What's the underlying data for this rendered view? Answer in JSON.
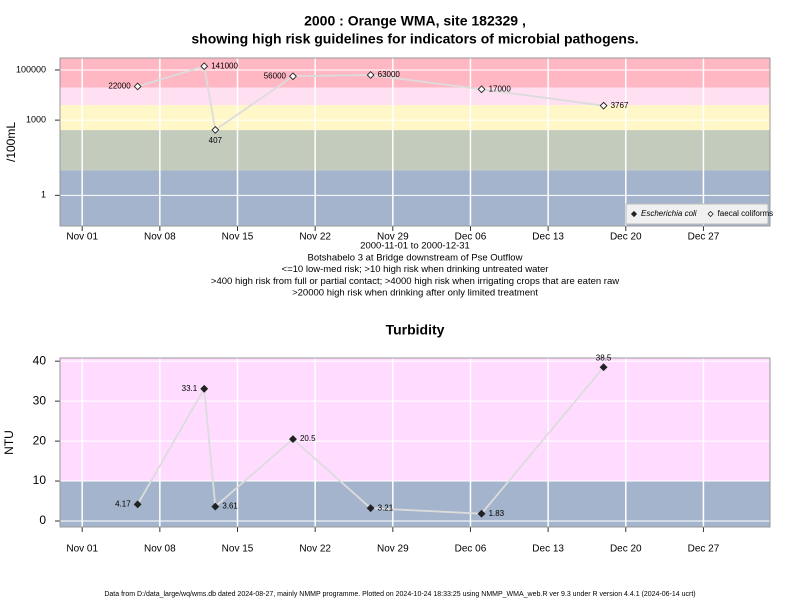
{
  "chart_data": [
    {
      "type": "line",
      "title": "2000 : Orange WMA, site 182329 ,",
      "subtitle": "showing high risk guidelines for indicators of microbial pathogens.",
      "y_label": "/100mL",
      "log_y": true,
      "x": [
        "Nov 06",
        "Nov 12",
        "Nov 13",
        "Nov 20",
        "Nov 27",
        "Dec 07",
        "Dec 18"
      ],
      "xlim": [
        "Oct 30",
        "Jan 02"
      ],
      "xticks": [
        "Nov 01",
        "Nov 08",
        "Nov 15",
        "Nov 22",
        "Nov 29",
        "Dec 06",
        "Dec 13",
        "Dec 20",
        "Dec 27"
      ],
      "ylim": [
        0.06,
        300000
      ],
      "yticks": [
        1,
        1000,
        100000
      ],
      "grid": true,
      "bands": [
        {
          "max": 10,
          "color": "#a3b4cc"
        },
        {
          "min": 10,
          "max": 400,
          "color": "#c3cbbd"
        },
        {
          "min": 400,
          "max": 4000,
          "color": "#fff7c8"
        },
        {
          "min": 4000,
          "max": 20000,
          "color": "#ffe0f2"
        },
        {
          "min": 20000,
          "color": "#ffb7c3"
        }
      ],
      "line_color": "#dcdcdc",
      "legend": "bottom-right",
      "series": [
        {
          "name": "Escherichia coli",
          "color": "#222222",
          "marker": "filled",
          "values": [
            null,
            null,
            null,
            null,
            null,
            null,
            null
          ]
        },
        {
          "name": "faecal coliforms",
          "color": "#222222",
          "marker": "open",
          "values": [
            22000,
            141000,
            407,
            56000,
            63000,
            17000,
            3767
          ]
        }
      ],
      "notes": [
        "2000-11-01 to 2000-12-31",
        "Botshabelo 3 at Bridge downstream of Pse Outflow",
        "<=10 low-med risk; >10 high risk when drinking untreated water",
        ">400 high risk from full or partial contact; >4000 high risk when irrigating crops that are eaten raw",
        ">20000 high risk when drinking after only limited treatment"
      ]
    },
    {
      "type": "line",
      "title": "Turbidity",
      "y_label": "NTU",
      "log_y": false,
      "x": [
        "Nov 06",
        "Nov 12",
        "Nov 13",
        "Nov 20",
        "Nov 27",
        "Dec 07",
        "Dec 18"
      ],
      "xlim": [
        "Oct 30",
        "Jan 02"
      ],
      "xticks": [
        "Nov 01",
        "Nov 08",
        "Nov 15",
        "Nov 22",
        "Nov 29",
        "Dec 06",
        "Dec 13",
        "Dec 20",
        "Dec 27"
      ],
      "ylim": [
        -1.5,
        40.8
      ],
      "yticks": [
        0,
        10,
        20,
        30,
        40
      ],
      "grid": true,
      "bands": [
        {
          "max": 10,
          "color": "#a3b4cc"
        },
        {
          "min": 10,
          "color": "#ffdcff"
        }
      ],
      "line_color": "#dcdcdc",
      "series": [
        {
          "name": "Turbidity",
          "color": "#222222",
          "marker": "filled",
          "values": [
            4.17,
            33.1,
            3.61,
            20.5,
            3.21,
            1.83,
            38.5
          ]
        }
      ]
    }
  ],
  "footer": "Data from D:/data_large/wq/wms.db dated 2024-08-27, mainly NMMP programme. Plotted on 2024-10-24 18:33:25 using NMMP_WMA_web.R ver 9.3 under R version 4.4.1 (2024-06-14 ucrt)"
}
